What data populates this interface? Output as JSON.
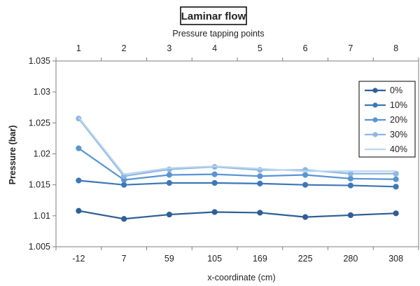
{
  "chart_data": {
    "type": "line",
    "title": "Laminar flow",
    "top_axis_label": "Pressure tapping points",
    "top_ticks": [
      "1",
      "2",
      "3",
      "4",
      "5",
      "6",
      "7",
      "8"
    ],
    "xlabel": "x-coordinate (cm)",
    "ylabel": "Pressure (bar)",
    "categories": [
      "-12",
      "7",
      "59",
      "105",
      "169",
      "225",
      "280",
      "308"
    ],
    "ylim": [
      1.005,
      1.035
    ],
    "yticks": [
      "1.005",
      "1.01",
      "1.015",
      "1.02",
      "1.025",
      "1.03",
      "1.035"
    ],
    "grid": false,
    "legend_position": "top-right",
    "series": [
      {
        "name": "0%",
        "color": "#2e5f96",
        "marker": true,
        "values": [
          1.0108,
          1.0095,
          1.0102,
          1.0106,
          1.0105,
          1.0098,
          1.0101,
          1.0104
        ]
      },
      {
        "name": "10%",
        "color": "#3d77b8",
        "marker": true,
        "values": [
          1.0157,
          1.015,
          1.0153,
          1.0153,
          1.0152,
          1.015,
          1.0149,
          1.0147
        ]
      },
      {
        "name": "20%",
        "color": "#5a94d2",
        "marker": true,
        "values": [
          1.0209,
          1.0158,
          1.0166,
          1.0167,
          1.0164,
          1.0166,
          1.016,
          1.0159
        ]
      },
      {
        "name": "30%",
        "color": "#8db7e2",
        "marker": true,
        "values": [
          1.0257,
          1.0164,
          1.0175,
          1.0179,
          1.0174,
          1.0174,
          1.0168,
          1.0168
        ]
      },
      {
        "name": "40%",
        "color": "#bcd6ef",
        "marker": false,
        "values": [
          1.0259,
          1.0167,
          1.0177,
          1.018,
          1.0176,
          1.0172,
          1.0172,
          1.0172
        ]
      }
    ]
  }
}
